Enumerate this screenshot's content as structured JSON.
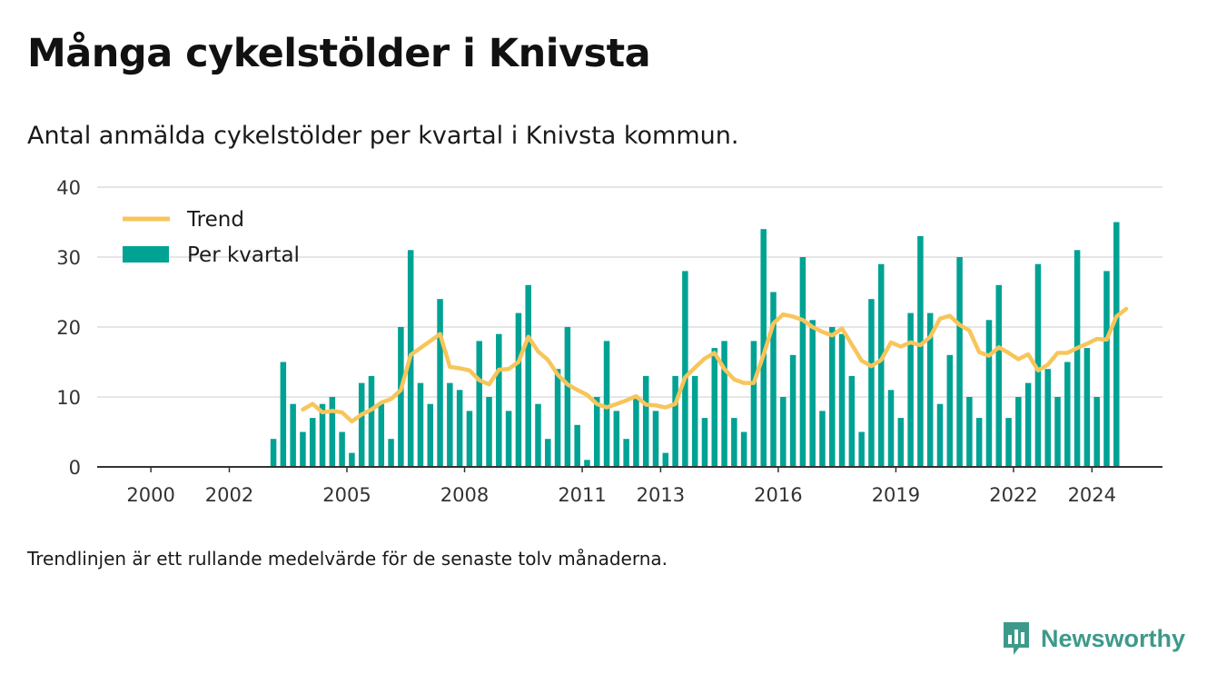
{
  "title": "Många cykelstölder i Knivsta",
  "subtitle": "Antal anmälda cykelstölder per kvartal i Knivsta kommun.",
  "note": "Trendlinjen är ett rullande medelvärde för de senaste tolv månaderna.",
  "logo": {
    "text": "Newsworthy",
    "icon": "newsworthy-logo-icon",
    "color": "#3d9a8a"
  },
  "colors": {
    "bars": "#00a294",
    "trend": "#f7c55a",
    "grid": "#dddddd",
    "axis": "#333333"
  },
  "chart_data": {
    "type": "bar",
    "title": "Många cykelstölder i Knivsta",
    "xlabel": "",
    "ylabel": "",
    "ylim": [
      0,
      40
    ],
    "yticks": [
      0,
      10,
      20,
      30,
      40
    ],
    "xticks": [
      {
        "year": 2000,
        "label": "2000"
      },
      {
        "year": 2002,
        "label": "2002"
      },
      {
        "year": 2005,
        "label": "2005"
      },
      {
        "year": 2008,
        "label": "2008"
      },
      {
        "year": 2011,
        "label": "2011"
      },
      {
        "year": 2013,
        "label": "2013"
      },
      {
        "year": 2016,
        "label": "2016"
      },
      {
        "year": 2019,
        "label": "2019"
      },
      {
        "year": 2022,
        "label": "2022"
      },
      {
        "year": 2024,
        "label": "2024"
      }
    ],
    "grid": true,
    "legend_position": "top-left",
    "series": [
      {
        "name": "Per kvartal",
        "type": "bar",
        "x_start": "2003-Q1",
        "values": [
          4,
          15,
          9,
          5,
          7,
          9,
          10,
          5,
          2,
          12,
          13,
          9,
          4,
          20,
          31,
          12,
          9,
          24,
          12,
          11,
          8,
          18,
          10,
          19,
          8,
          22,
          26,
          9,
          4,
          14,
          20,
          6,
          1,
          10,
          18,
          8,
          4,
          10,
          13,
          8,
          2,
          13,
          28,
          13,
          7,
          17,
          18,
          7,
          5,
          18,
          34,
          25,
          10,
          16,
          30,
          21,
          8,
          20,
          19,
          13,
          5,
          24,
          29,
          11,
          7,
          22,
          33,
          22,
          9,
          16,
          30,
          10,
          7,
          21,
          26,
          7,
          10,
          12,
          29,
          14,
          10,
          15,
          31,
          17,
          10,
          28,
          35
        ]
      },
      {
        "name": "Trend",
        "type": "line",
        "x_start": "2003-Q4",
        "values": [
          8.2,
          9.0,
          7.8,
          8.0,
          7.8,
          6.5,
          7.5,
          8.2,
          9.2,
          9.7,
          11.0,
          16.0,
          17.0,
          18.0,
          19.0,
          14.3,
          14.1,
          13.8,
          12.4,
          11.8,
          13.9,
          14.0,
          15.0,
          18.6,
          16.5,
          15.3,
          13.2,
          11.8,
          11.0,
          10.3,
          9.0,
          8.5,
          9.0,
          9.5,
          10.1,
          8.9,
          8.8,
          8.5,
          9.0,
          12.8,
          14.2,
          15.5,
          16.3,
          14.0,
          12.5,
          12.0,
          12.0,
          16.0,
          20.5,
          21.8,
          21.5,
          21.0,
          20.0,
          19.3,
          18.8,
          19.8,
          17.5,
          15.2,
          14.4,
          15.3,
          17.8,
          17.2,
          17.8,
          17.4,
          18.6,
          21.2,
          21.6,
          20.3,
          19.5,
          16.4,
          15.9,
          17.1,
          16.3,
          15.4,
          16.1,
          13.8,
          14.6,
          16.3,
          16.3,
          17.0,
          17.6,
          18.3,
          18.2,
          21.5,
          22.6
        ]
      }
    ]
  }
}
